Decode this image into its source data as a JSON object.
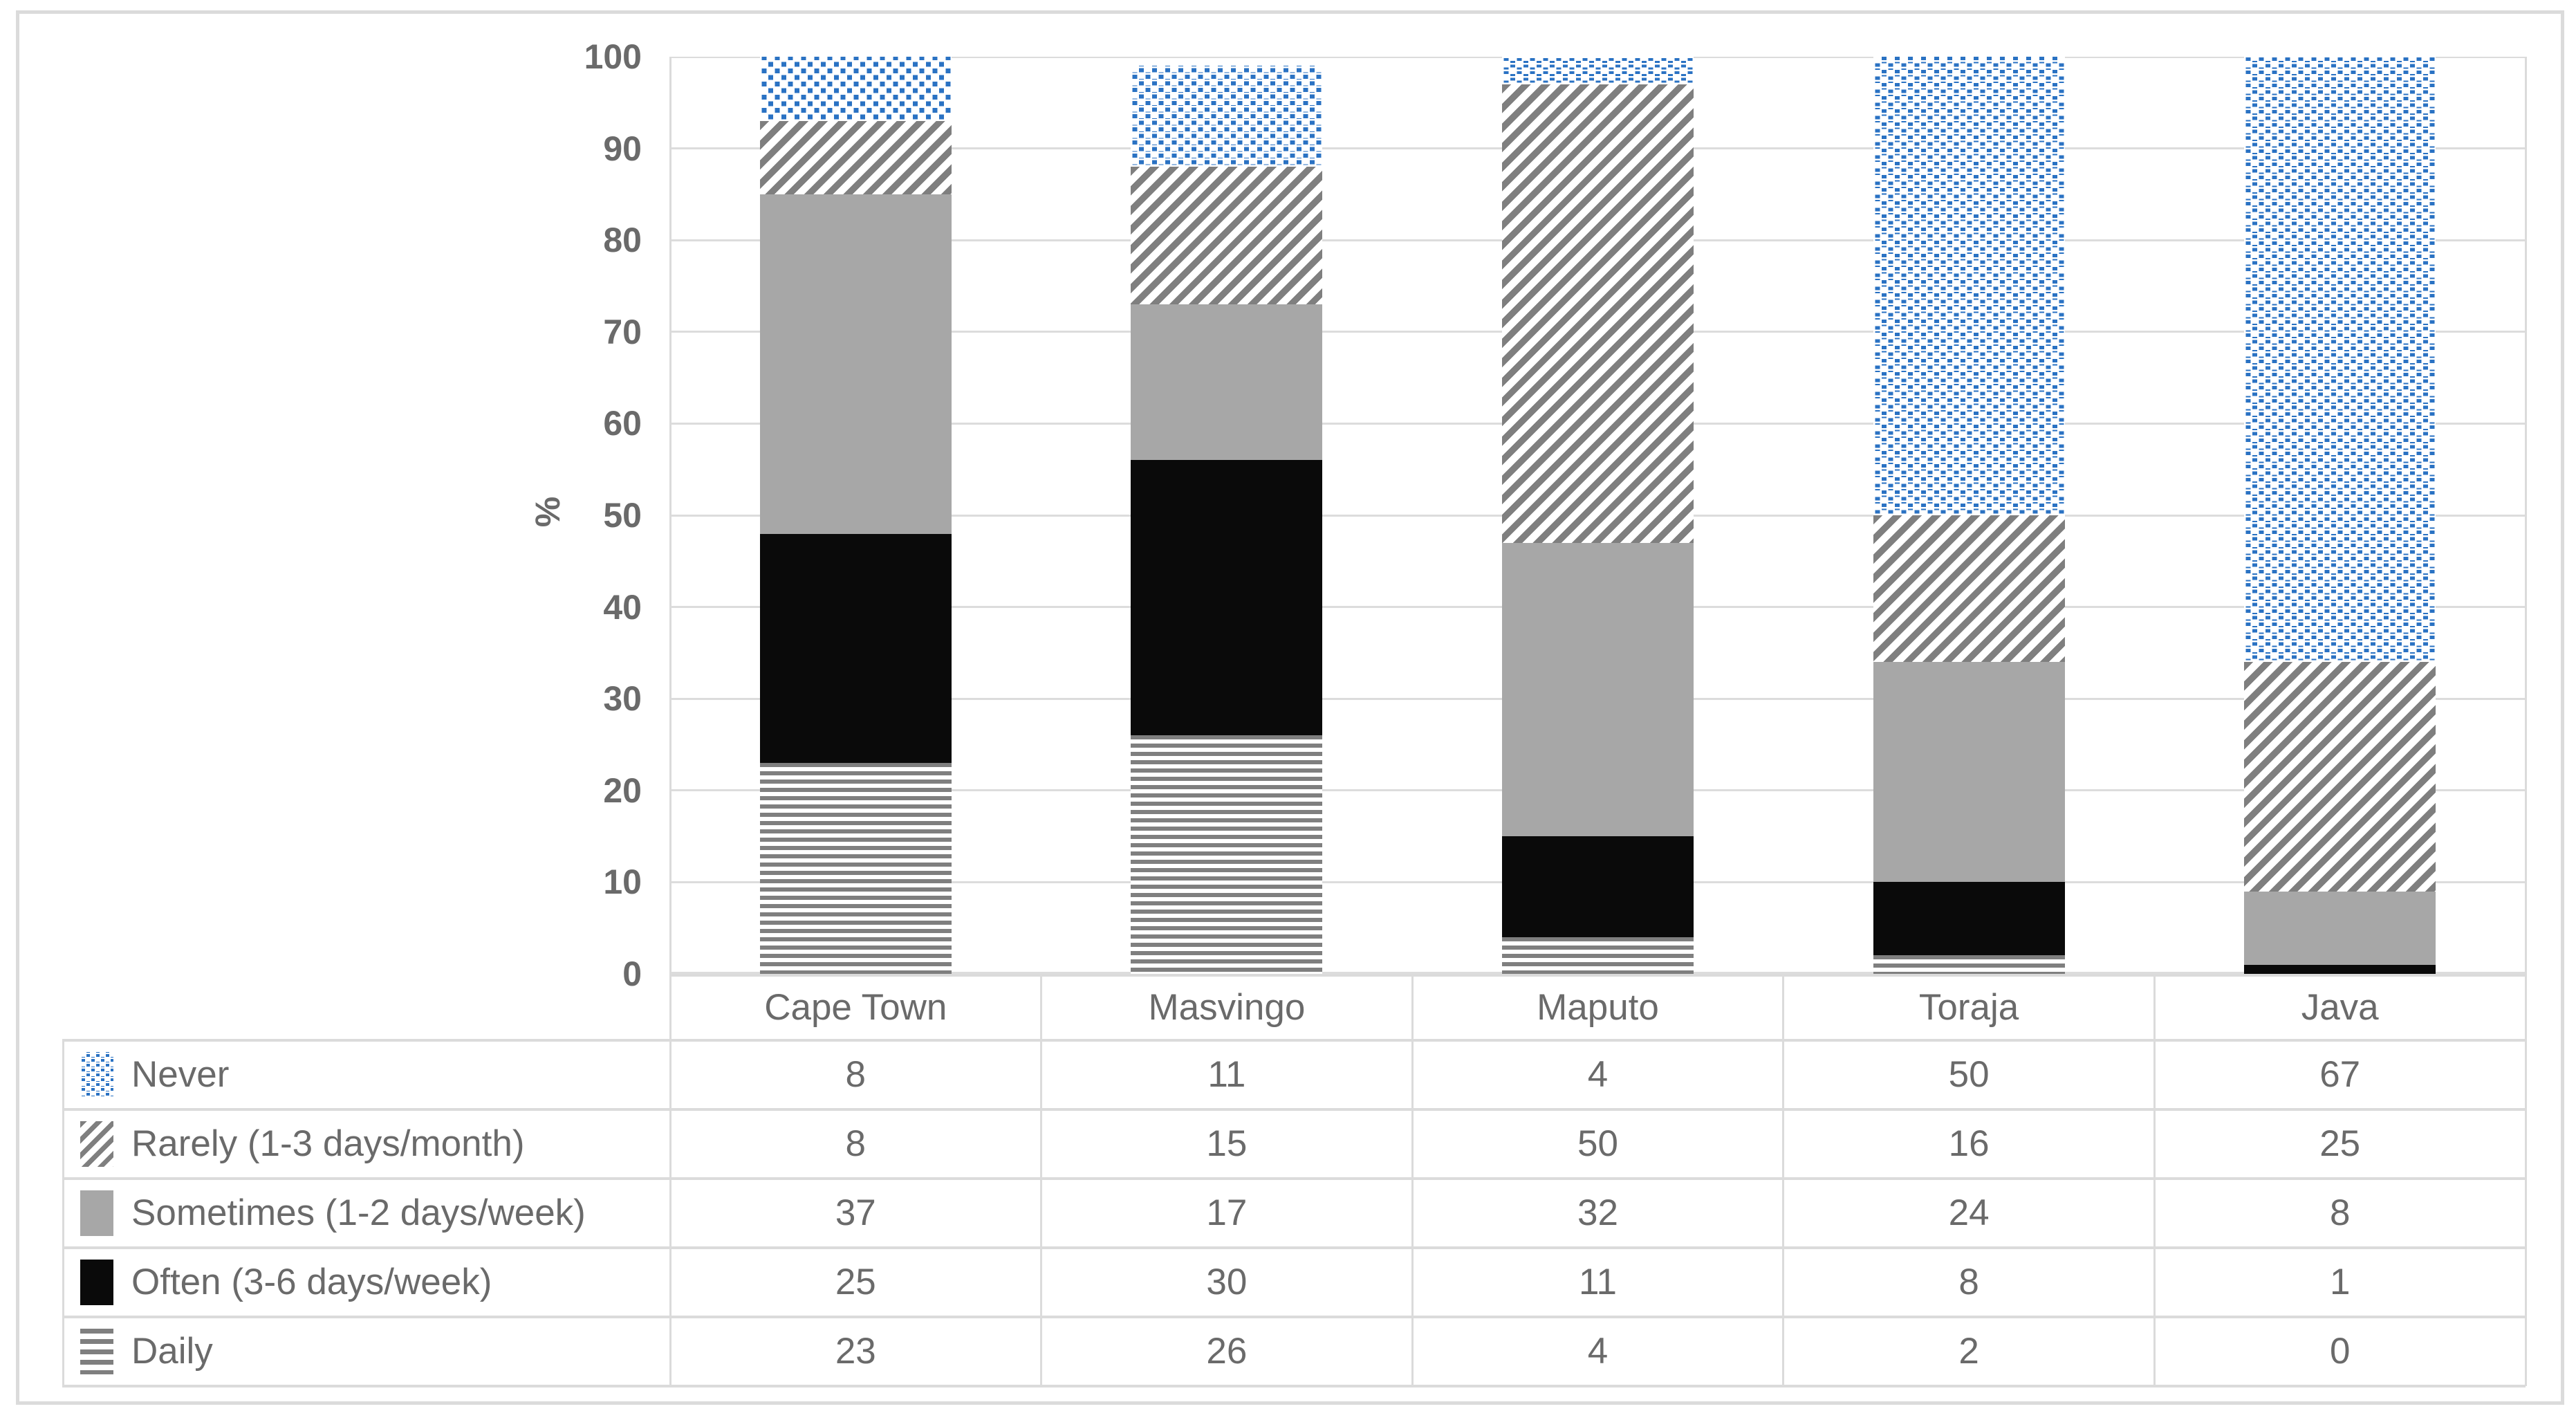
{
  "colors": {
    "blue": "#2A72C3",
    "stripe": "#7F7F7F",
    "gray": "#A7A7A7",
    "black": "#0A0A0A",
    "text": "#6A6A6A",
    "grid": "#DCDCDC",
    "line": "#DBDBDB",
    "background": "#FFFFFF"
  },
  "chart_data": {
    "type": "bar",
    "stacked": true,
    "title": "",
    "xlabel": "",
    "ylabel": "%",
    "ylim": [
      0,
      100
    ],
    "ytick_step": 10,
    "yticks": [
      100,
      90,
      80,
      70,
      60,
      50,
      40,
      30,
      20,
      10,
      0
    ],
    "grid": true,
    "legend_position": "data-table-left-column",
    "categories": [
      "Cape Town",
      "Masvingo",
      "Maputo",
      "Toraja",
      "Java"
    ],
    "series": [
      {
        "name": "Never",
        "pattern": "blue-dots",
        "values": [
          8,
          11,
          4,
          50,
          67
        ]
      },
      {
        "name": "Rarely (1-3 days/month)",
        "pattern": "diagonal-stripes",
        "values": [
          8,
          15,
          50,
          16,
          25
        ]
      },
      {
        "name": "Sometimes (1-2 days/week)",
        "pattern": "solid-gray",
        "values": [
          37,
          17,
          32,
          24,
          8
        ]
      },
      {
        "name": "Often (3-6 days/week)",
        "pattern": "solid-black",
        "values": [
          25,
          30,
          11,
          8,
          1
        ]
      },
      {
        "name": "Daily",
        "pattern": "horizontal-stripes",
        "values": [
          23,
          26,
          4,
          2,
          0
        ]
      }
    ]
  }
}
